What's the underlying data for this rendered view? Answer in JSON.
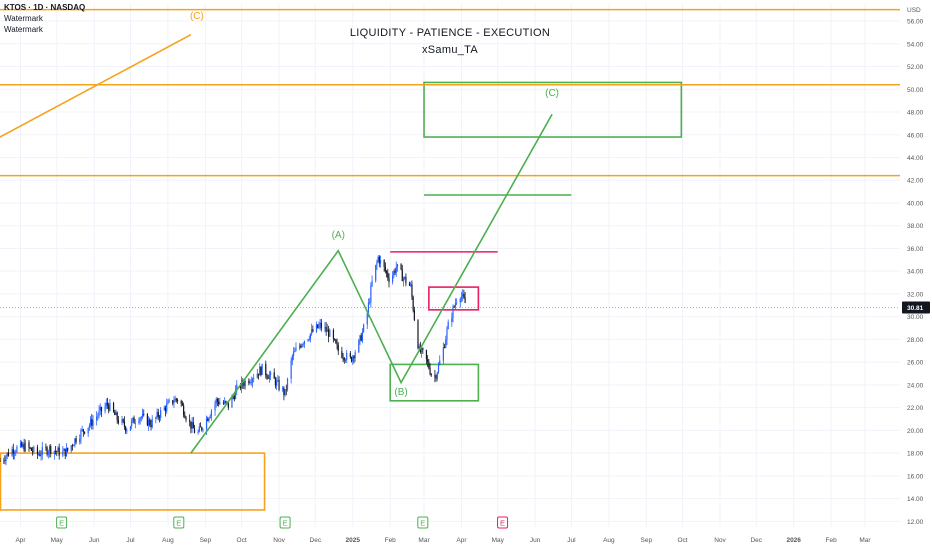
{
  "header": {
    "symbol_line": "KTOS · 1D · NASDAQ",
    "watermark_1": "Watermark",
    "watermark_2": "Watermark"
  },
  "titles": {
    "main": "LIQUIDITY - PATIENCE - EXECUTION",
    "author": "xSamu_TA"
  },
  "colors": {
    "up_candle": "#2962ff",
    "down_candle": "#131722",
    "green": "#4caf50",
    "orange": "#f7a21b",
    "pink": "#e91e63",
    "grid": "#f0f3fa",
    "axis_text": "#555555",
    "price_tag_bg": "#131722"
  },
  "chart_data": {
    "type": "candlestick",
    "currency": "USD",
    "y_ticks": [
      12,
      14,
      16,
      18,
      20,
      22,
      24,
      26,
      28,
      30,
      32,
      34,
      36,
      38,
      40,
      42,
      44,
      46,
      48,
      50,
      52,
      54,
      56
    ],
    "ylim": [
      11.5,
      57.5
    ],
    "x_ticks": [
      {
        "label": "Apr",
        "date": "2024-04-01"
      },
      {
        "label": "May",
        "date": "2024-05-01"
      },
      {
        "label": "Jun",
        "date": "2024-06-01"
      },
      {
        "label": "Jul",
        "date": "2024-07-01"
      },
      {
        "label": "Aug",
        "date": "2024-08-01"
      },
      {
        "label": "Sep",
        "date": "2024-09-01"
      },
      {
        "label": "Oct",
        "date": "2024-10-01"
      },
      {
        "label": "Nov",
        "date": "2024-11-01"
      },
      {
        "label": "Dec",
        "date": "2024-12-01"
      },
      {
        "label": "2025",
        "date": "2025-01-01",
        "bold": true
      },
      {
        "label": "Feb",
        "date": "2025-02-01"
      },
      {
        "label": "Mar",
        "date": "2025-03-01"
      },
      {
        "label": "Apr",
        "date": "2025-04-01"
      },
      {
        "label": "May",
        "date": "2025-05-01"
      },
      {
        "label": "Jun",
        "date": "2025-06-01"
      },
      {
        "label": "Jul",
        "date": "2025-07-01"
      },
      {
        "label": "Aug",
        "date": "2025-08-01"
      },
      {
        "label": "Sep",
        "date": "2025-09-01"
      },
      {
        "label": "Oct",
        "date": "2025-10-01"
      },
      {
        "label": "Nov",
        "date": "2025-11-01"
      },
      {
        "label": "Dec",
        "date": "2025-12-01"
      },
      {
        "label": "2026",
        "date": "2026-01-01",
        "bold": true
      },
      {
        "label": "Feb",
        "date": "2026-02-01"
      },
      {
        "label": "Mar",
        "date": "2026-03-01"
      }
    ],
    "xlim": [
      "2024-03-15",
      "2026-03-30"
    ],
    "last_price": "30.81",
    "price_path": [
      [
        "2024-03-15",
        17.3
      ],
      [
        "2024-03-25",
        18.3
      ],
      [
        "2024-04-05",
        18.6
      ],
      [
        "2024-04-15",
        17.9
      ],
      [
        "2024-04-25",
        18.4
      ],
      [
        "2024-05-05",
        18.0
      ],
      [
        "2024-05-10",
        18.2
      ],
      [
        "2024-05-18",
        19.5
      ],
      [
        "2024-05-28",
        20.5
      ],
      [
        "2024-06-05",
        21.5
      ],
      [
        "2024-06-12",
        22.3
      ],
      [
        "2024-06-20",
        21.0
      ],
      [
        "2024-06-28",
        20.2
      ],
      [
        "2024-07-08",
        21.3
      ],
      [
        "2024-07-18",
        20.6
      ],
      [
        "2024-07-28",
        21.8
      ],
      [
        "2024-08-05",
        22.6
      ],
      [
        "2024-08-10",
        22.8
      ],
      [
        "2024-08-18",
        20.8
      ],
      [
        "2024-08-25",
        19.6
      ],
      [
        "2024-09-01",
        20.8
      ],
      [
        "2024-09-10",
        22.6
      ],
      [
        "2024-09-20",
        22.2
      ],
      [
        "2024-09-28",
        23.8
      ],
      [
        "2024-10-08",
        24.6
      ],
      [
        "2024-10-18",
        25.4
      ],
      [
        "2024-10-28",
        24.4
      ],
      [
        "2024-11-06",
        23.2
      ],
      [
        "2024-11-12",
        26.5
      ],
      [
        "2024-11-20",
        27.8
      ],
      [
        "2024-11-28",
        28.6
      ],
      [
        "2024-12-05",
        29.2
      ],
      [
        "2024-12-12",
        28.6
      ],
      [
        "2024-12-20",
        27.0
      ],
      [
        "2024-12-30",
        26.2
      ],
      [
        "2025-01-06",
        27.6
      ],
      [
        "2025-01-12",
        29.6
      ],
      [
        "2025-01-17",
        33.0
      ],
      [
        "2025-01-22",
        35.2
      ],
      [
        "2025-01-27",
        34.2
      ],
      [
        "2025-02-01",
        33.2
      ],
      [
        "2025-02-06",
        34.4
      ],
      [
        "2025-02-12",
        33.4
      ],
      [
        "2025-02-18",
        32.6
      ],
      [
        "2025-02-22",
        29.0
      ],
      [
        "2025-02-25",
        27.0
      ],
      [
        "2025-03-01",
        26.6
      ],
      [
        "2025-03-05",
        25.6
      ],
      [
        "2025-03-09",
        24.4
      ],
      [
        "2025-03-13",
        25.6
      ],
      [
        "2025-03-17",
        27.2
      ],
      [
        "2025-03-21",
        29.2
      ],
      [
        "2025-03-25",
        30.6
      ],
      [
        "2025-03-30",
        32.2
      ],
      [
        "2025-04-03",
        31.4
      ],
      [
        "2025-04-06",
        30.81
      ]
    ],
    "horizontal_lines": [
      {
        "price": 57.0,
        "color": "orange"
      },
      {
        "price": 50.4,
        "color": "orange"
      },
      {
        "price": 42.4,
        "color": "orange"
      },
      {
        "price": 40.7,
        "from": "2025-03-01",
        "to": "2025-07-01",
        "color": "green"
      },
      {
        "price": 35.7,
        "from": "2025-02-01",
        "to": "2025-05-01",
        "color": "pink"
      }
    ],
    "zones": [
      {
        "from": "2025-03-01",
        "to": "2025-09-30",
        "low": 45.8,
        "high": 50.6,
        "color": "green"
      },
      {
        "from": "2025-02-01",
        "to": "2025-04-15",
        "low": 22.6,
        "high": 25.8,
        "color": "green"
      },
      {
        "from": "2025-03-05",
        "to": "2025-04-15",
        "low": 30.6,
        "high": 32.6,
        "color": "pink"
      },
      {
        "from": "2024-03-15",
        "to": "2024-10-20",
        "low": 13.0,
        "high": 18.0,
        "color": "orange"
      }
    ],
    "wave_path": [
      [
        "2024-08-20",
        18.0
      ],
      [
        "2024-12-20",
        35.8
      ],
      [
        "2025-02-10",
        24.2
      ],
      [
        "2025-06-15",
        47.8
      ]
    ],
    "orange_diagonal": [
      [
        "2024-03-15",
        45.8
      ],
      [
        "2024-08-20",
        54.8
      ]
    ],
    "wave_labels": [
      {
        "text": "(A)",
        "date": "2024-12-20",
        "price": 36.9,
        "color": "green"
      },
      {
        "text": "(B)",
        "date": "2025-02-10",
        "price": 23.1,
        "color": "green"
      },
      {
        "text": "(C)",
        "date": "2025-06-15",
        "price": 49.4,
        "color": "green"
      },
      {
        "text": "(C)",
        "date": "2024-08-25",
        "price": 56.2,
        "color": "orange"
      }
    ],
    "earnings_markers": [
      {
        "date": "2024-05-05",
        "label": "E",
        "color": "green"
      },
      {
        "date": "2024-08-10",
        "label": "E",
        "color": "green"
      },
      {
        "date": "2024-11-06",
        "label": "E",
        "color": "green"
      },
      {
        "date": "2025-02-28",
        "label": "E",
        "color": "green"
      },
      {
        "date": "2025-05-05",
        "label": "E",
        "color": "pink"
      }
    ]
  }
}
